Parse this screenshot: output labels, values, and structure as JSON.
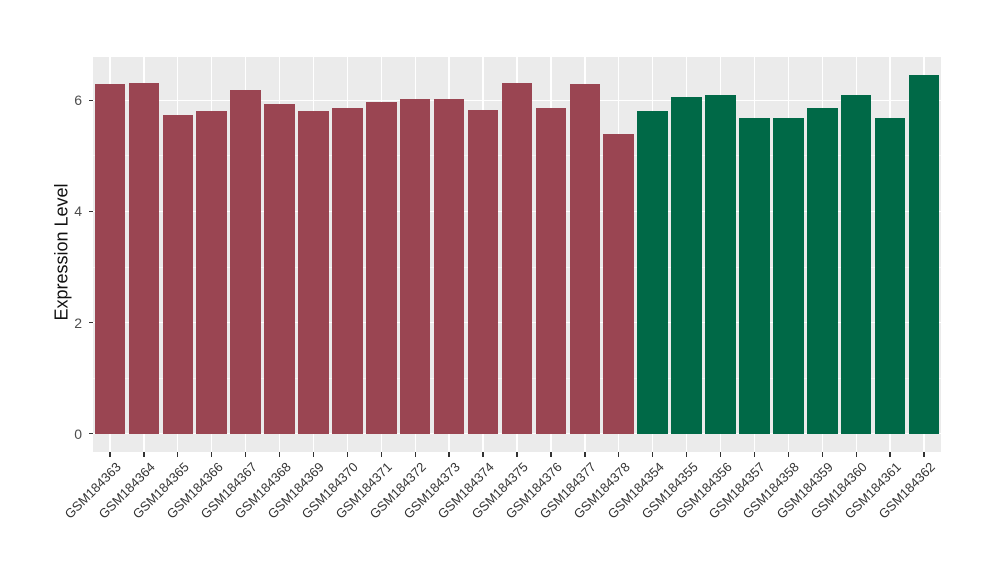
{
  "figure": {
    "background": "#FFFFFF"
  },
  "chart_data": {
    "type": "bar",
    "title": "",
    "xlabel": "",
    "ylabel": "Expression Level",
    "categories": [
      "GSM184363",
      "GSM184364",
      "GSM184365",
      "GSM184366",
      "GSM184367",
      "GSM184368",
      "GSM184369",
      "GSM184370",
      "GSM184371",
      "GSM184372",
      "GSM184373",
      "GSM184374",
      "GSM184375",
      "GSM184376",
      "GSM184377",
      "GSM184378",
      "GSM184354",
      "GSM184355",
      "GSM184356",
      "GSM184357",
      "GSM184358",
      "GSM184359",
      "GSM184360",
      "GSM184361",
      "GSM184362"
    ],
    "values": [
      6.29,
      6.31,
      5.73,
      5.81,
      6.19,
      5.94,
      5.8,
      5.86,
      5.97,
      6.02,
      6.02,
      5.82,
      6.32,
      5.86,
      6.3,
      5.4,
      5.81,
      6.06,
      6.09,
      5.69,
      5.69,
      5.87,
      6.1,
      5.68,
      6.46
    ],
    "bar_colors": [
      "#9A4552",
      "#9A4552",
      "#9A4552",
      "#9A4552",
      "#9A4552",
      "#9A4552",
      "#9A4552",
      "#9A4552",
      "#9A4552",
      "#9A4552",
      "#9A4552",
      "#9A4552",
      "#9A4552",
      "#9A4552",
      "#9A4552",
      "#9A4552",
      "#006947",
      "#006947",
      "#006947",
      "#006947",
      "#006947",
      "#006947",
      "#006947",
      "#006947",
      "#006947"
    ],
    "group_colors": {
      "GSM184363-GSM184378": "#9A4552",
      "GSM184354-GSM184362": "#006947"
    },
    "ylim": [
      0,
      6.78
    ],
    "yticks": [
      "0",
      "2",
      "4",
      "6"
    ],
    "ytick_values": [
      0,
      2,
      4,
      6
    ],
    "minor_yticks": [
      1,
      3,
      5
    ],
    "grid": "on",
    "legend": "none",
    "panel_bg": "#EBEBEB",
    "major_grid_color": "#FFFFFF",
    "minor_grid_color": "#F6F6F6",
    "axis_text_color": "#4D4D4D",
    "x_axis_text_color": "#333333",
    "tick_color": "#333333",
    "x_tick_angle": 45
  }
}
